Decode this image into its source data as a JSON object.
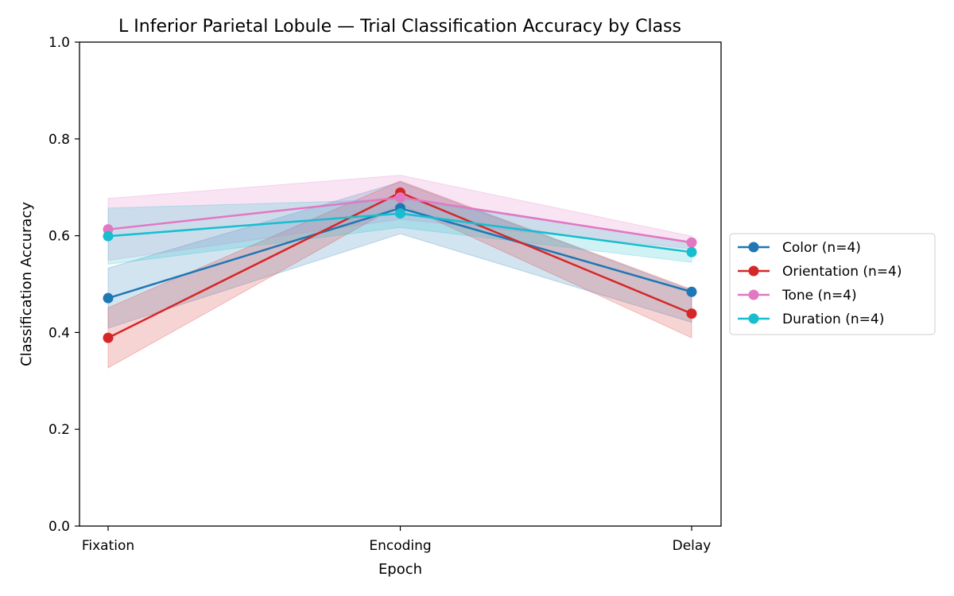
{
  "chart_data": {
    "type": "line",
    "title": "L Inferior Parietal Lobule — Trial Classification Accuracy by Class",
    "xlabel": "Epoch",
    "ylabel": "Classification Accuracy",
    "categories": [
      "Fixation",
      "Encoding",
      "Delay"
    ],
    "ylim": [
      0.0,
      1.0
    ],
    "yticks": [
      "0.0",
      "0.2",
      "0.4",
      "0.6",
      "0.8",
      "1.0"
    ],
    "grid": false,
    "legend_position": "right, outside",
    "series": [
      {
        "name": "Color (n=4)",
        "color": "#1f77b4",
        "values": [
          0.471,
          0.657,
          0.484
        ],
        "lower": [
          0.409,
          0.604,
          0.421
        ],
        "upper": [
          0.533,
          0.711,
          0.487
        ]
      },
      {
        "name": "Orientation (n=4)",
        "color": "#d62728",
        "values": [
          0.389,
          0.689,
          0.439
        ],
        "lower": [
          0.327,
          0.665,
          0.389
        ],
        "upper": [
          0.451,
          0.713,
          0.489
        ]
      },
      {
        "name": "Tone (n=4)",
        "color": "#e377c2",
        "values": [
          0.613,
          0.679,
          0.586
        ],
        "lower": [
          0.549,
          0.634,
          0.573
        ],
        "upper": [
          0.677,
          0.725,
          0.599
        ]
      },
      {
        "name": "Duration (n=4)",
        "color": "#17becf",
        "values": [
          0.599,
          0.646,
          0.566
        ],
        "lower": [
          0.541,
          0.617,
          0.545
        ],
        "upper": [
          0.657,
          0.675,
          0.587
        ]
      }
    ]
  }
}
